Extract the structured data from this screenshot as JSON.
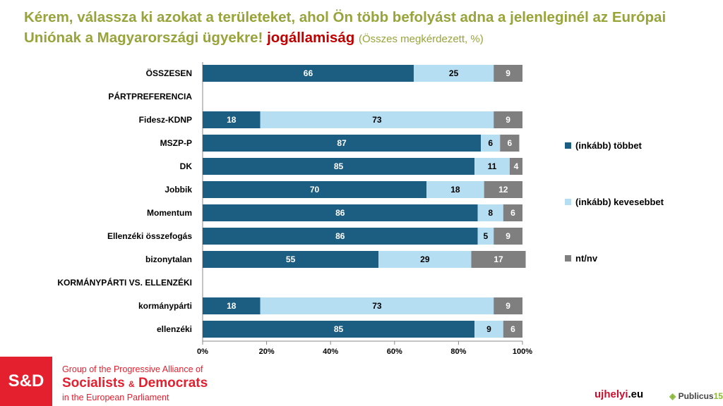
{
  "title": {
    "main": "Kérem, válassza ki azokat a területeket, ahol Ön több befolyást adna a jelenleginél az Európai Uniónak a Magyarországi ügyekre!",
    "highlight": "jogállamiság",
    "sub": "(Összes megkérdezett, %)"
  },
  "colors": {
    "more": "#1b5e82",
    "less": "#b6def2",
    "dk": "#7f7f7f",
    "title": "#98a43a",
    "highlight": "#c00000",
    "brand": "#e4202f"
  },
  "chart_data": {
    "type": "bar",
    "stacked": true,
    "orientation": "horizontal",
    "categories": [
      "ÖSSZESEN",
      "PÁRTPREFERENCIA",
      "Fidesz-KDNP",
      "MSZP-P",
      "DK",
      "Jobbik",
      "Momentum",
      "Ellenzéki összefogás",
      "bizonytalan",
      "KORMÁNYPÁRTI VS. ELLENZÉKI",
      "kormánypárti",
      "ellenzéki"
    ],
    "series": [
      {
        "name": "(inkább) többet",
        "values": [
          66,
          null,
          18,
          87,
          85,
          70,
          86,
          86,
          55,
          null,
          18,
          85
        ]
      },
      {
        "name": "(inkább) kevesebbet",
        "values": [
          25,
          null,
          73,
          6,
          11,
          18,
          8,
          5,
          29,
          null,
          73,
          9
        ]
      },
      {
        "name": "nt/nv",
        "values": [
          9,
          null,
          9,
          6,
          4,
          12,
          6,
          9,
          17,
          null,
          9,
          6
        ]
      }
    ],
    "xticks": [
      "0%",
      "20%",
      "40%",
      "60%",
      "80%",
      "100%"
    ],
    "xlim": [
      0,
      100
    ],
    "legend": "right"
  },
  "footer": {
    "logo": "S&D",
    "line1": "Group of the Progressive Alliance of",
    "line2a": "Socialists",
    "amp": "&",
    "line2b": "Democrats",
    "line3": "in the European Parliament",
    "ujhelyi": "ujhelyi",
    "eu": ".eu",
    "publicus": "Publicus",
    "publicus_num": "15"
  }
}
